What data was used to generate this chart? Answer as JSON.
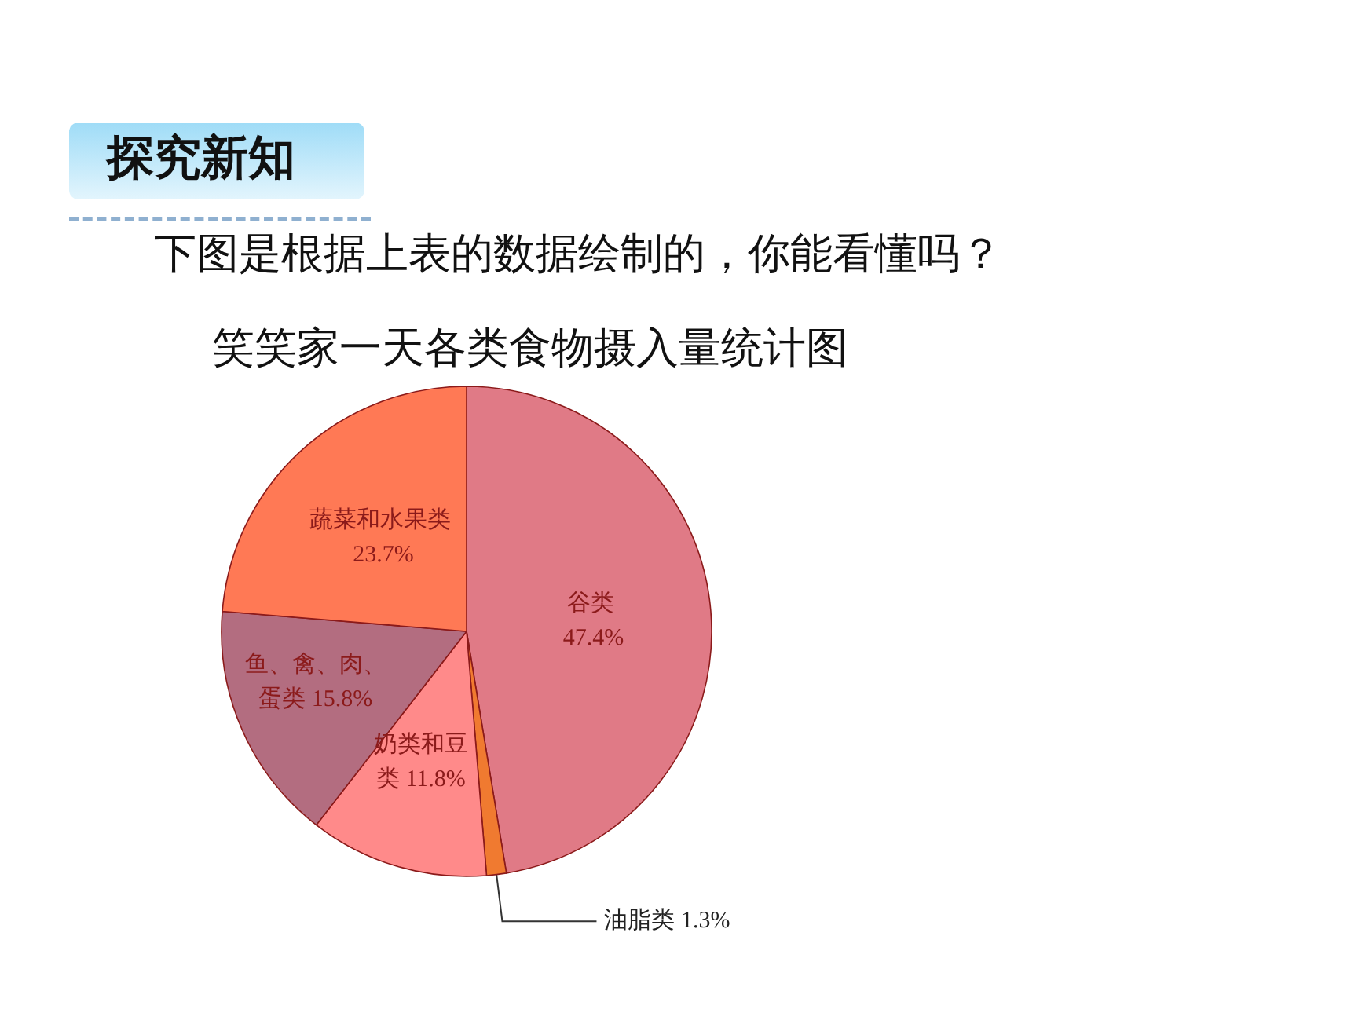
{
  "chart_data": {
    "type": "pie",
    "title": "笑笑家一天各类食物摄入量统计图",
    "annotations": [
      "探究新知",
      "下图是根据上表的数据绘制的，你能看懂吗？"
    ],
    "categories": [
      "谷类",
      "油脂类",
      "奶类和豆类",
      "鱼、禽、肉、蛋类",
      "蔬菜和水果类"
    ],
    "values": [
      47.4,
      1.3,
      11.8,
      15.8,
      23.7
    ],
    "colors": [
      "#e07a86",
      "#f07a30",
      "#ff8a8a",
      "#b36d80",
      "#ff7955"
    ],
    "value_labels": [
      "47.4%",
      "1.3%",
      "11.8%",
      "15.8%",
      "23.7%"
    ]
  }
}
